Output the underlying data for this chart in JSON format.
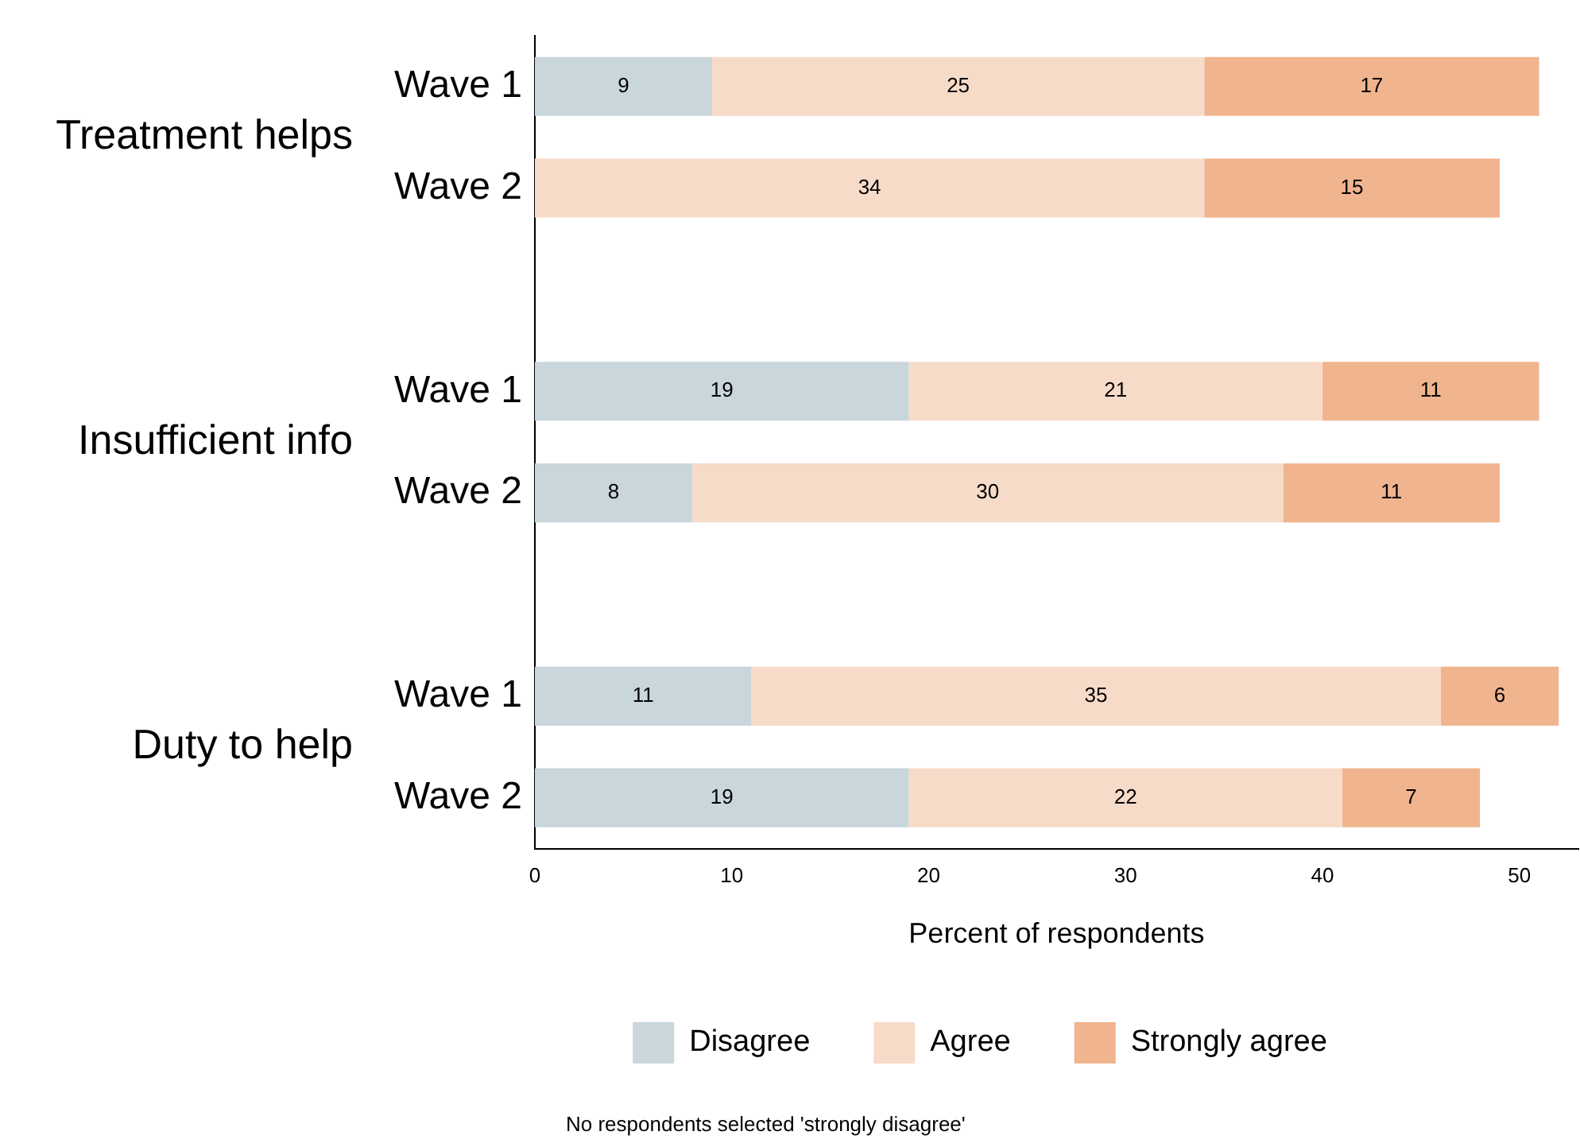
{
  "chart_data": {
    "type": "bar",
    "orientation": "horizontal",
    "stacked": true,
    "categories": [
      "Wave 1",
      "Wave 2",
      "Wave 1",
      "Wave 2",
      "Wave 1",
      "Wave 2"
    ],
    "series": [
      {
        "name": "Disagree",
        "color": "#c9d6dc",
        "values": [
          9,
          null,
          19,
          8,
          11,
          19
        ]
      },
      {
        "name": "Agree",
        "color": "#f7dbc9",
        "values": [
          25,
          34,
          21,
          30,
          35,
          22
        ]
      },
      {
        "name": "Strongly agree",
        "color": "#f0b48e",
        "values": [
          17,
          15,
          11,
          11,
          6,
          7
        ]
      }
    ],
    "xlabel": "Percent of respondents",
    "xlim": [
      0,
      53
    ],
    "xticks": [
      0,
      10,
      20,
      30,
      40,
      50
    ],
    "data_labels": true,
    "grid": false,
    "legend": "bottom",
    "annotations": [
      "Treatment helps",
      "Insufficient info",
      "Duty to help",
      "No respondents selected 'strongly disagree'"
    ]
  }
}
